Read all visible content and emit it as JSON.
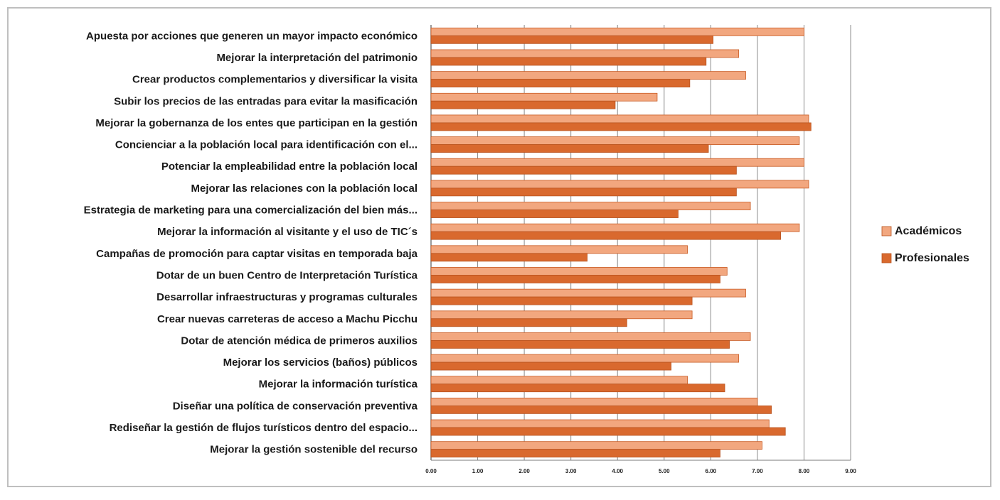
{
  "chart_data": {
    "type": "bar",
    "orientation": "horizontal",
    "categories": [
      "Apuesta por  acciones que generen un mayor impacto económico",
      "Mejorar la interpretación del patrimonio",
      "Crear productos complementarios  y diversificar la visita",
      "Subir los precios de las entradas para evitar la masificación",
      "Mejorar la gobernanza de los entes que participan en la gestión",
      "Concienciar a la población local para identificación con el...",
      "Potenciar la empleabilidad entre la población local",
      "Mejorar las relaciones con la población local",
      "Estrategia de marketing para una comercialización del bien más...",
      "Mejorar la información al visitante  y el uso de TIC´s",
      "Campañas de promoción para captar visitas en temporada baja",
      "Dotar de un buen Centro de Interpretación Turística",
      "Desarrollar infraestructuras y programas  culturales",
      "Crear nuevas carreteras de acceso a  Machu Picchu",
      "Dotar de atención  médica de primeros auxilios",
      "Mejorar los servicios (baños) públicos",
      "Mejorar la información turística",
      "Diseñar una política de conservación preventiva",
      "Rediseñar la gestión de flujos turísticos dentro del espacio...",
      "Mejorar la gestión sostenible del recurso"
    ],
    "series": [
      {
        "name": "Académicos",
        "color": "#f2a77f",
        "values": [
          8.0,
          6.6,
          6.75,
          4.85,
          8.1,
          7.9,
          8.0,
          8.1,
          6.85,
          7.9,
          5.5,
          6.35,
          6.75,
          5.6,
          6.85,
          6.6,
          5.5,
          7.0,
          7.25,
          7.1
        ]
      },
      {
        "name": "Profesionales",
        "color": "#d9692e",
        "values": [
          6.05,
          5.9,
          5.55,
          3.95,
          8.15,
          5.95,
          6.55,
          6.55,
          5.3,
          7.5,
          3.35,
          6.2,
          5.6,
          4.2,
          6.4,
          5.15,
          6.3,
          7.3,
          7.6,
          6.2
        ]
      }
    ],
    "x_ticks": [
      "0.00",
      "1.00",
      "2.00",
      "3.00",
      "4.00",
      "5.00",
      "6.00",
      "7.00",
      "8.00",
      "9.00"
    ],
    "xlim": [
      0,
      9
    ],
    "title": "",
    "xlabel": "",
    "ylabel": "",
    "grid": "vertical",
    "legend_position": "right"
  }
}
